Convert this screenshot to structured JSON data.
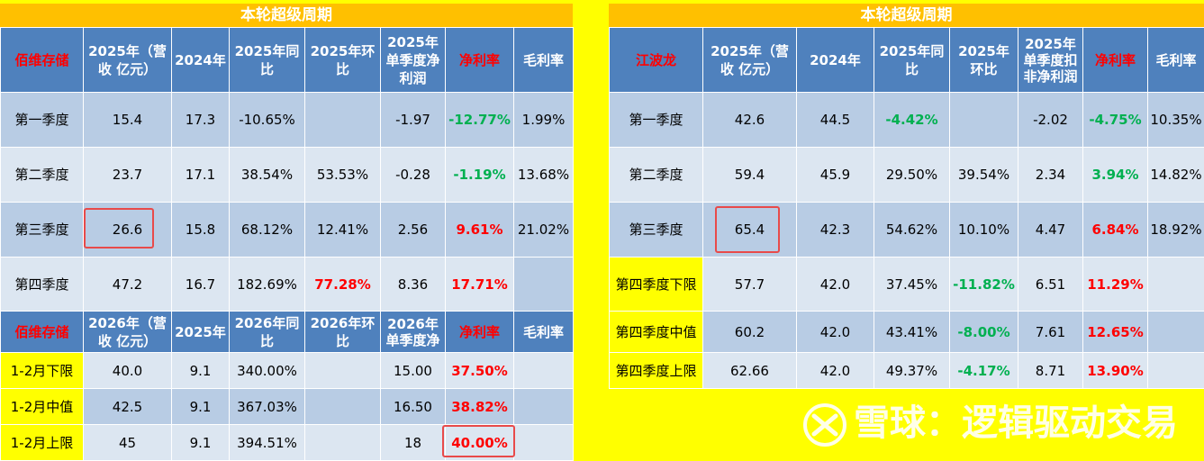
{
  "left": {
    "title": "本轮超级周期",
    "company": "佰维存储",
    "headers": [
      "2025年（营收 亿元）",
      "2024年",
      "2025年同比",
      "2025年环比",
      "2025年单季度净利润",
      "净利率",
      "毛利率"
    ],
    "rows": [
      [
        "第一季度",
        "15.4",
        "17.3",
        "-10.65%",
        "",
        "-1.97",
        "-12.77%",
        "1.99%"
      ],
      [
        "第二季度",
        "23.7",
        "17.1",
        "38.54%",
        "53.53%",
        "-0.28",
        "-1.19%",
        "13.68%"
      ],
      [
        "第三季度",
        "26.6",
        "15.8",
        "68.12%",
        "12.41%",
        "2.56",
        "9.61%",
        "21.02%"
      ],
      [
        "第四季度",
        "47.2",
        "16.7",
        "182.69%",
        "77.28%",
        "8.36",
        "17.71%",
        ""
      ]
    ],
    "headers2": [
      "2026年（营收 亿元）",
      "2025年",
      "2026年同比",
      "2026年环比",
      "2026年单季度净",
      "净利率",
      "毛利率"
    ],
    "rows2": [
      [
        "1-2月下限",
        "40.0",
        "9.1",
        "340.00%",
        "",
        "15.00",
        "37.50%",
        ""
      ],
      [
        "1-2月中值",
        "42.5",
        "9.1",
        "367.03%",
        "",
        "16.50",
        "38.82%",
        ""
      ],
      [
        "1-2月上限",
        "45",
        "9.1",
        "394.51%",
        "",
        "18",
        "40.00%",
        ""
      ]
    ]
  },
  "right": {
    "title": "本轮超级周期",
    "company": "江波龙",
    "headers": [
      "2025年（营收 亿元）",
      "2024年",
      "2025年同比",
      "2025年环比",
      "2025年单季度扣非净利润",
      "净利率",
      "毛利率"
    ],
    "rows": [
      [
        "第一季度",
        "42.6",
        "44.5",
        "-4.42%",
        "",
        "-2.02",
        "-4.75%",
        "10.35%"
      ],
      [
        "第二季度",
        "59.4",
        "45.9",
        "29.50%",
        "39.54%",
        "2.34",
        "3.94%",
        "14.82%"
      ],
      [
        "第三季度",
        "65.4",
        "42.3",
        "54.62%",
        "10.10%",
        "4.47",
        "6.84%",
        "18.92%"
      ],
      [
        "第四季度下限",
        "57.7",
        "42.0",
        "37.45%",
        "-11.82%",
        "6.51",
        "11.29%"
      ],
      [
        "第四季度中值",
        "60.2",
        "42.0",
        "43.41%",
        "-8.00%",
        "7.61",
        "12.65%"
      ],
      [
        "第四季度上限",
        "62.66",
        "42.0",
        "49.37%",
        "-4.17%",
        "8.71",
        "13.90%"
      ]
    ]
  },
  "watermark": "雪球：逻辑驱动交易"
}
